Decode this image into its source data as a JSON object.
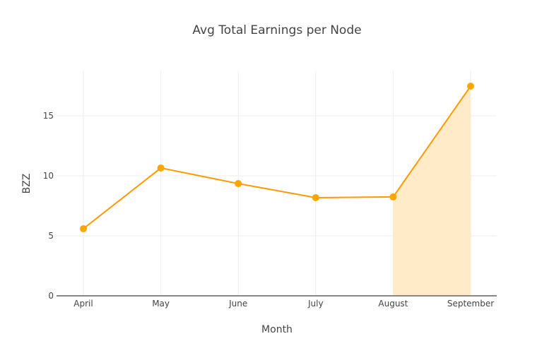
{
  "chart_data": {
    "type": "line",
    "title": "Avg Total Earnings per Node",
    "xlabel": "Month",
    "ylabel": "BZZ",
    "categories": [
      "April",
      "May",
      "June",
      "July",
      "August",
      "September"
    ],
    "series": [
      {
        "name": "Avg Total Earnings",
        "values": [
          5.59,
          10.65,
          9.35,
          8.18,
          8.24,
          17.47
        ],
        "color": "#ff9900",
        "marker_color": "#ffa500"
      }
    ],
    "highlight": {
      "from": "August",
      "to": "September",
      "fill": "#ffebc8"
    },
    "yticks": [
      0,
      5,
      10,
      15
    ],
    "ylim": [
      0,
      18.8
    ],
    "grid": true,
    "legend": "none"
  },
  "labels": {
    "title": "Avg Total Earnings per Node",
    "xaxis": "Month",
    "yaxis": "BZZ"
  },
  "colors": {
    "line": "#ff9900",
    "marker": "#ffa500",
    "fill": "#ffebc8",
    "grid": "#eeeeee",
    "axis": "#888888",
    "text": "#444444"
  }
}
